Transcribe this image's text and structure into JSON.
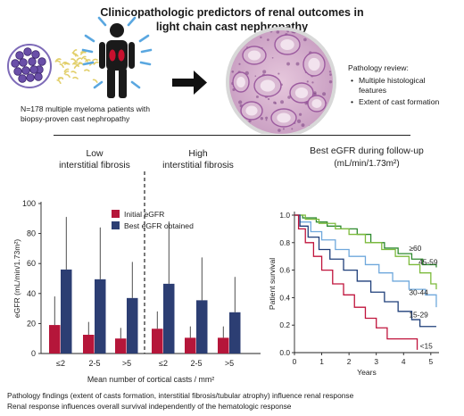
{
  "title_line1": "Clinicopathologic predictors of renal outcomes in",
  "title_line2": "light chain cast nephropathy",
  "cohort_text_line1": "N=178 multiple myeloma patients with",
  "cohort_text_line2": "biopsy-proven cast nephropathy",
  "pathology": {
    "heading": "Pathology review:",
    "bullets": [
      {
        "line1": "Multiple histological",
        "line2": "features"
      },
      {
        "line1": "Extent of cast formation",
        "line2": ""
      }
    ]
  },
  "icons": {
    "marrow": "bone-marrow-cells-icon",
    "protein": "light-chain-protein-icon",
    "person": "patient-kidney-icon",
    "arrow": "right-arrow-icon",
    "biopsy": "kidney-biopsy-histology-icon"
  },
  "footer": {
    "line1": "Pathology findings (extent of casts formation, interstitial fibrosis/tubular atrophy) influence renal response",
    "line2": "Renal response influences overall survival independently of the hematologic response"
  },
  "chart_data": [
    {
      "type": "bar",
      "group_titles": [
        {
          "line1": "Low",
          "line2": "interstitial fibrosis"
        },
        {
          "line1": "High",
          "line2": "interstitial fibrosis"
        }
      ],
      "categories": [
        "≤2",
        "2-5",
        ">5",
        "≤2",
        "2-5",
        ">5"
      ],
      "series": [
        {
          "name": "Initial eGFR",
          "color": "#b5163a",
          "values": [
            19,
            12.5,
            10,
            16.5,
            10.5,
            10.5
          ],
          "error_upper": [
            38,
            21,
            17,
            28,
            18,
            18
          ]
        },
        {
          "name": "Best eGFR obtained",
          "color": "#2c3e73",
          "values": [
            56,
            49.5,
            37,
            46.5,
            35.5,
            27.5
          ],
          "error_upper": [
            91,
            84,
            61,
            88,
            64,
            51
          ]
        }
      ],
      "ylabel": "eGFR (mL/min/1.73m²)",
      "xlabel": "Mean number of cortical casts / mm²",
      "ylim": [
        0,
        100
      ],
      "yticks": [
        "0",
        "20",
        "40",
        "60",
        "80",
        "100"
      ],
      "legend_position": "top-right-of-low-group"
    },
    {
      "type": "line",
      "title_line1": "Best eGFR during follow-up",
      "title_line2": "(mL/min/1.73m²)",
      "xlabel": "Years",
      "ylabel": "Patient survival",
      "xlim": [
        0,
        5.3
      ],
      "ylim": [
        0,
        1.0
      ],
      "xticks": [
        "0",
        "1",
        "2",
        "3",
        "4",
        "5"
      ],
      "yticks": [
        "0.0",
        "0.2",
        "0.4",
        "0.6",
        "0.8",
        "1.0"
      ],
      "series": [
        {
          "name": "≥60",
          "color": "#2e8a2e",
          "points": [
            [
              0,
              1
            ],
            [
              0.3,
              0.98
            ],
            [
              0.8,
              0.95
            ],
            [
              1.2,
              0.92
            ],
            [
              1.7,
              0.9
            ],
            [
              2.3,
              0.86
            ],
            [
              2.8,
              0.8
            ],
            [
              3.3,
              0.76
            ],
            [
              3.8,
              0.72
            ],
            [
              4.3,
              0.68
            ],
            [
              4.7,
              0.64
            ],
            [
              5.2,
              0.62
            ]
          ]
        },
        {
          "name": "45-59",
          "color": "#7dbb3c",
          "points": [
            [
              0,
              1
            ],
            [
              0.4,
              0.97
            ],
            [
              0.9,
              0.94
            ],
            [
              1.5,
              0.9
            ],
            [
              2.0,
              0.86
            ],
            [
              2.6,
              0.8
            ],
            [
              3.2,
              0.75
            ],
            [
              3.7,
              0.7
            ],
            [
              4.2,
              0.64
            ],
            [
              4.6,
              0.58
            ],
            [
              5.0,
              0.5
            ],
            [
              5.2,
              0.46
            ]
          ]
        },
        {
          "name": "30-44",
          "color": "#6fa8dc",
          "points": [
            [
              0,
              1
            ],
            [
              0.2,
              0.95
            ],
            [
              0.6,
              0.88
            ],
            [
              1.0,
              0.82
            ],
            [
              1.5,
              0.75
            ],
            [
              2.0,
              0.7
            ],
            [
              2.6,
              0.64
            ],
            [
              3.1,
              0.58
            ],
            [
              3.6,
              0.52
            ],
            [
              4.2,
              0.46
            ],
            [
              4.8,
              0.42
            ],
            [
              5.2,
              0.33
            ]
          ]
        },
        {
          "name": "15-29",
          "color": "#1f3f7a",
          "points": [
            [
              0,
              1
            ],
            [
              0.2,
              0.92
            ],
            [
              0.5,
              0.84
            ],
            [
              0.9,
              0.75
            ],
            [
              1.3,
              0.68
            ],
            [
              1.8,
              0.6
            ],
            [
              2.3,
              0.52
            ],
            [
              2.8,
              0.44
            ],
            [
              3.3,
              0.37
            ],
            [
              3.8,
              0.3
            ],
            [
              4.3,
              0.24
            ],
            [
              4.6,
              0.19
            ],
            [
              5.2,
              0.19
            ]
          ]
        },
        {
          "name": "<15",
          "color": "#c0143c",
          "points": [
            [
              0,
              1
            ],
            [
              0.15,
              0.9
            ],
            [
              0.4,
              0.8
            ],
            [
              0.7,
              0.7
            ],
            [
              1.0,
              0.6
            ],
            [
              1.4,
              0.5
            ],
            [
              1.8,
              0.42
            ],
            [
              2.2,
              0.33
            ],
            [
              2.6,
              0.25
            ],
            [
              3.0,
              0.18
            ],
            [
              3.4,
              0.1
            ],
            [
              4.1,
              0.1
            ],
            [
              4.5,
              0.02
            ]
          ]
        }
      ]
    }
  ]
}
